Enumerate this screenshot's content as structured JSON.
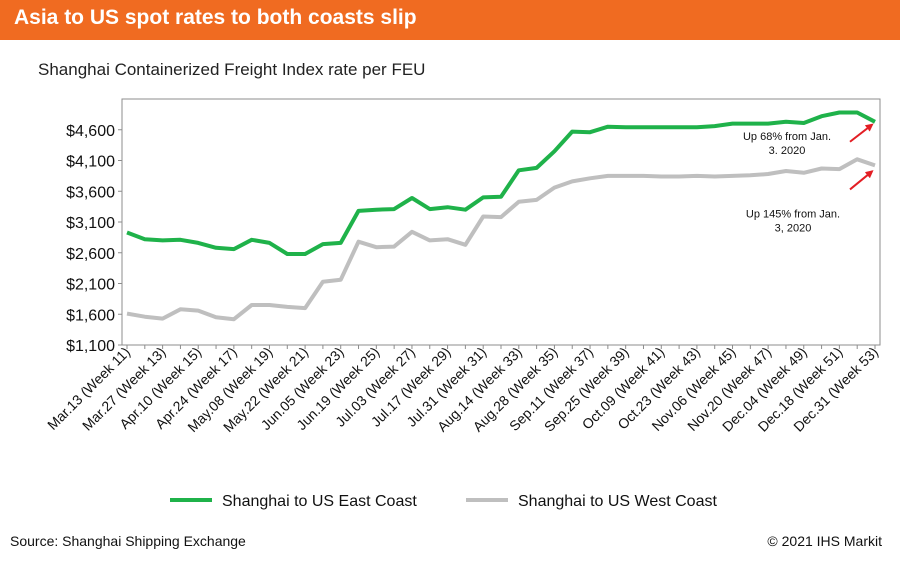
{
  "header": {
    "title": "Asia to US spot rates to both coasts slip"
  },
  "footer": {
    "source": "Source: Shanghai Shipping Exchange",
    "copyright": "© 2021 IHS Markit"
  },
  "chart_data": {
    "type": "line",
    "title": "Shanghai Containerized Freight Index rate per FEU",
    "xlabel": "",
    "ylabel": "",
    "ylim": [
      1100,
      5100
    ],
    "yticks": [
      1100,
      1600,
      2100,
      2600,
      3100,
      3600,
      4100,
      4600
    ],
    "ytick_labels": [
      "$1,100",
      "$1,600",
      "$2,100",
      "$2,600",
      "$3,100",
      "$3,600",
      "$4,100",
      "$4,600"
    ],
    "grid": false,
    "legend_position": "bottom",
    "x_tick_labels": [
      "Mar.13 (Week 11)",
      "Mar.27 (Week 13)",
      "Apr.10 (Week 15)",
      "Apr.24 (Week 17)",
      "May.08 (Week 19)",
      "May.22 (Week 21)",
      "Jun.05 (Week 23)",
      "Jun.19 (Week 25)",
      "Jul.03 (Week 27)",
      "Jul.17 (Week 29)",
      "Jul.31 (Week 31)",
      "Aug.14 (Week 33)",
      "Aug.28 (Week 35)",
      "Sep.11 (Week 37)",
      "Sep.25 (Week 39)",
      "Oct.09 (Week 41)",
      "Oct.23 (Week 43)",
      "Nov.06 (Week 45)",
      "Nov.20 (Week 47)",
      "Dec.04 (Week 49)",
      "Dec.18 (Week 51)",
      "Dec.31 (Week 53)"
    ],
    "x": [
      11,
      12,
      13,
      14,
      15,
      16,
      17,
      18,
      19,
      20,
      21,
      22,
      23,
      24,
      25,
      26,
      27,
      28,
      29,
      30,
      31,
      32,
      33,
      34,
      35,
      36,
      37,
      38,
      39,
      40,
      41,
      42,
      43,
      44,
      45,
      46,
      47,
      48,
      49,
      50,
      51,
      52,
      53
    ],
    "series": [
      {
        "name": "Shanghai to US East Coast",
        "color": "#1fb24a",
        "values": [
          2930,
          2820,
          2800,
          2810,
          2760,
          2680,
          2660,
          2810,
          2760,
          2580,
          2580,
          2740,
          2760,
          3280,
          3300,
          3310,
          3490,
          3310,
          3340,
          3300,
          3500,
          3510,
          3940,
          3980,
          4250,
          4570,
          4560,
          4650,
          4640,
          4640,
          4640,
          4640,
          4640,
          4660,
          4700,
          4700,
          4700,
          4730,
          4710,
          4820,
          4880,
          4880,
          4730
        ]
      },
      {
        "name": "Shanghai to US West Coast",
        "color": "#bfbfbf",
        "values": [
          1610,
          1560,
          1530,
          1680,
          1660,
          1550,
          1520,
          1750,
          1750,
          1720,
          1700,
          2130,
          2160,
          2780,
          2690,
          2700,
          2940,
          2800,
          2820,
          2730,
          3190,
          3180,
          3430,
          3460,
          3660,
          3760,
          3810,
          3850,
          3850,
          3850,
          3840,
          3840,
          3850,
          3840,
          3850,
          3860,
          3880,
          3930,
          3900,
          3970,
          3960,
          4120,
          4020
        ]
      }
    ],
    "annotations": [
      {
        "text_line1": "Up 68% from Jan.",
        "text_line2": "3. 2020",
        "series": 0,
        "color": "#e31e24"
      },
      {
        "text_line1": "Up 145% from Jan.",
        "text_line2": "3, 2020",
        "series": 1,
        "color": "#e31e24"
      }
    ]
  }
}
